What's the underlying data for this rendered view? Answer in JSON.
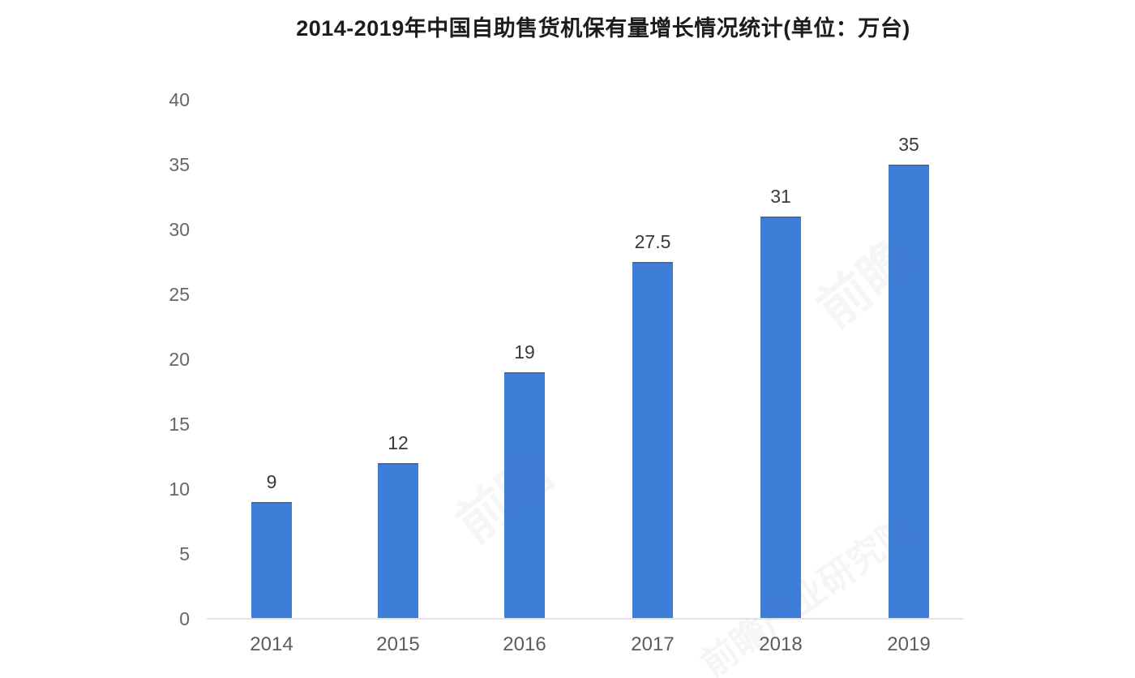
{
  "chart_data": {
    "type": "bar",
    "title": "2014-2019年中国自助售货机保有量增长情况统计(单位：万台)",
    "categories": [
      "2014",
      "2015",
      "2016",
      "2017",
      "2018",
      "2019"
    ],
    "values": [
      9,
      12,
      19,
      27.5,
      31,
      35
    ],
    "value_labels": [
      "9",
      "12",
      "19",
      "27.5",
      "31",
      "35"
    ],
    "yticks": [
      40,
      35,
      30,
      25,
      20,
      15,
      10,
      5,
      0
    ],
    "ylim": [
      0,
      40
    ],
    "xlabel": "",
    "ylabel": "",
    "grid": "off",
    "legend": "none",
    "bar_color": "#3e7ed8",
    "axis_line_color": "#e4e4e4",
    "title_color": "#1c1c1c",
    "tick_color": "#666666",
    "value_label_color": "#3a3a3a"
  },
  "watermarks": [
    {
      "text": "前瞻"
    },
    {
      "text": "前瞻"
    },
    {
      "text": "前瞻产业研究院"
    }
  ]
}
